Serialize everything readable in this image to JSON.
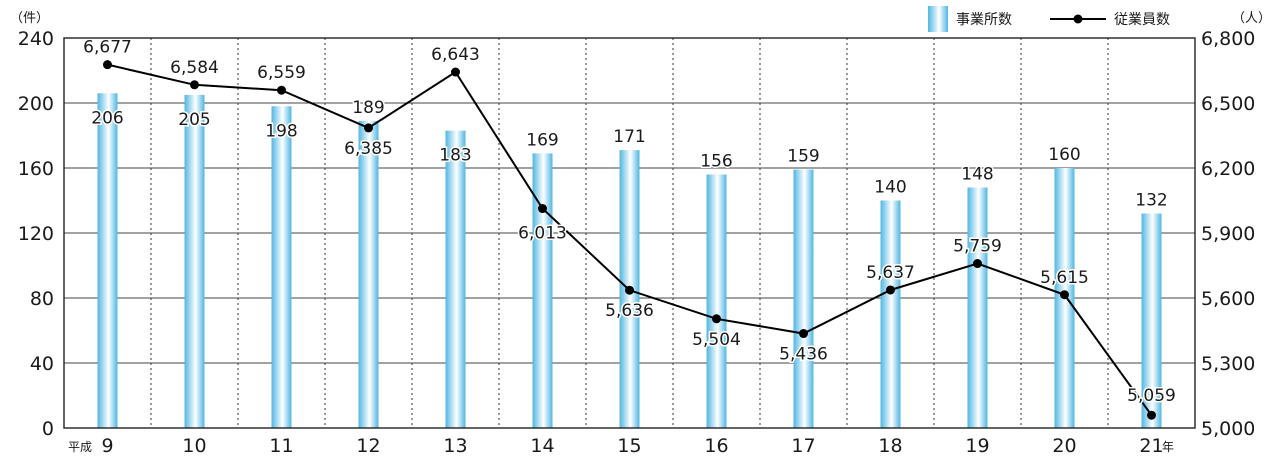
{
  "chart_data": {
    "type": "bar+line",
    "era_prefix": "平成",
    "year_suffix": "年",
    "categories": [
      "9",
      "10",
      "11",
      "12",
      "13",
      "14",
      "15",
      "16",
      "17",
      "18",
      "19",
      "20",
      "21"
    ],
    "series": [
      {
        "name": "事業所数",
        "type": "bar",
        "axis": "left",
        "values": [
          206,
          205,
          198,
          189,
          183,
          169,
          171,
          156,
          159,
          140,
          148,
          160,
          132
        ]
      },
      {
        "name": "従業員数",
        "type": "line",
        "axis": "right",
        "values": [
          6677,
          6584,
          6559,
          6385,
          6643,
          6013,
          5636,
          5504,
          5436,
          5637,
          5759,
          5615,
          5059
        ]
      }
    ],
    "bar_labels": [
      "206",
      "205",
      "198",
      "189",
      "183",
      "169",
      "171",
      "156",
      "159",
      "140",
      "148",
      "160",
      "132"
    ],
    "line_labels": [
      "6,677",
      "6,584",
      "6,559",
      "6,385",
      "6,643",
      "6,013",
      "5,636",
      "5,504",
      "5,436",
      "5,637",
      "5,759",
      "5,615",
      "5,059"
    ],
    "left_axis": {
      "unit": "（件）",
      "ylim": [
        0,
        240
      ],
      "ticks": [
        "0",
        "40",
        "80",
        "120",
        "160",
        "200",
        "240"
      ]
    },
    "right_axis": {
      "unit": "（人）",
      "ylim": [
        5000,
        6800
      ],
      "ticks": [
        "5,000",
        "5,300",
        "5,600",
        "5,900",
        "6,200",
        "6,500",
        "6,800"
      ]
    },
    "grid": {
      "horizontal": "solid",
      "vertical": "dotted"
    },
    "legend_position": "top-right",
    "colors": {
      "bar_edge": "#5bbde6",
      "bar_center": "#ffffff",
      "line": "#000000",
      "grid": "#333333"
    }
  }
}
